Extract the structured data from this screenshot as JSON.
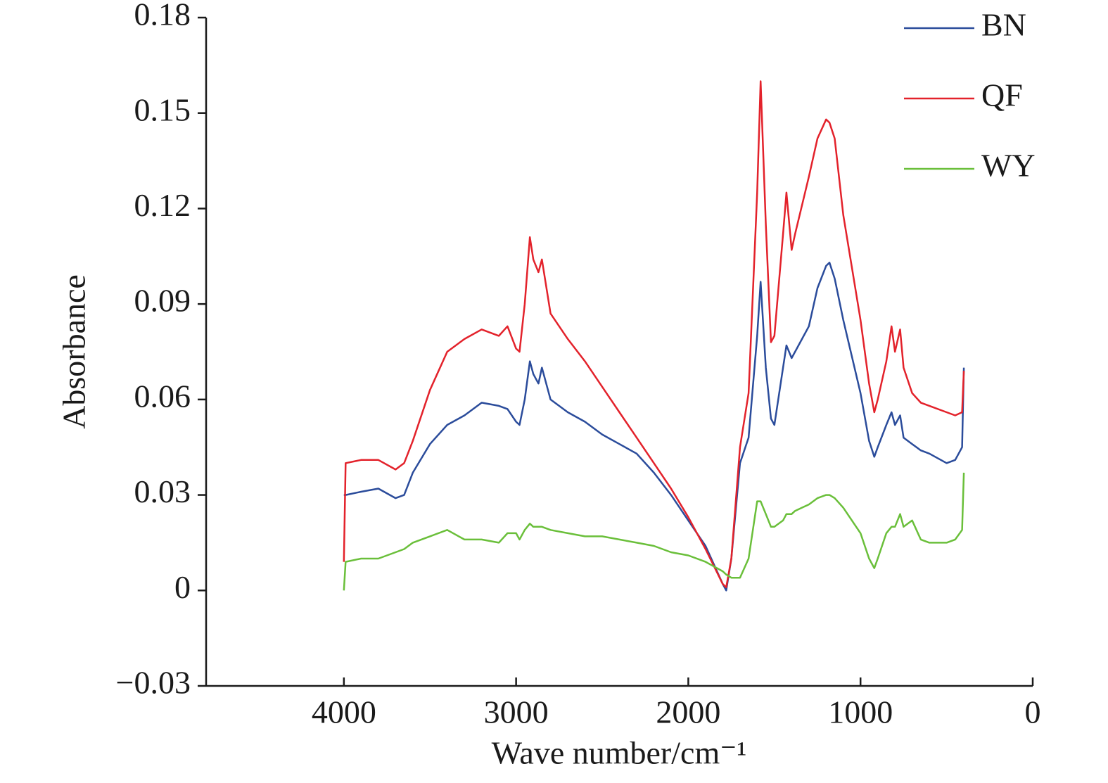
{
  "chart_data": {
    "type": "line",
    "xlabel": "Wave number/cm⁻¹",
    "ylabel": "Absorbance",
    "xlim": [
      4800,
      0
    ],
    "xticks": [
      4000,
      3000,
      2000,
      1000,
      0
    ],
    "ylim": [
      -0.03,
      0.18
    ],
    "yticks": [
      {
        "value": -0.03,
        "label": "−0.03"
      },
      0,
      0.03,
      0.06,
      0.09,
      0.12,
      0.15,
      0.18
    ],
    "legend": "top-right",
    "x": [
      4000,
      3990,
      3900,
      3800,
      3700,
      3650,
      3600,
      3500,
      3400,
      3300,
      3200,
      3100,
      3050,
      3000,
      2980,
      2950,
      2920,
      2900,
      2870,
      2850,
      2800,
      2700,
      2600,
      2500,
      2400,
      2300,
      2200,
      2100,
      2000,
      1900,
      1800,
      1780,
      1750,
      1700,
      1650,
      1600,
      1580,
      1550,
      1520,
      1500,
      1450,
      1430,
      1400,
      1380,
      1300,
      1250,
      1200,
      1180,
      1150,
      1100,
      1000,
      950,
      920,
      900,
      850,
      820,
      800,
      770,
      750,
      700,
      650,
      600,
      500,
      450,
      410,
      400
    ],
    "series": [
      {
        "name": "BN",
        "color": "#2b4c9b",
        "values": [
          0.03,
          0.03,
          0.031,
          0.032,
          0.029,
          0.03,
          0.037,
          0.046,
          0.052,
          0.055,
          0.059,
          0.058,
          0.057,
          0.053,
          0.052,
          0.06,
          0.072,
          0.068,
          0.065,
          0.07,
          0.06,
          0.056,
          0.053,
          0.049,
          0.046,
          0.043,
          0.037,
          0.03,
          0.022,
          0.014,
          0.002,
          0.0,
          0.01,
          0.04,
          0.048,
          0.08,
          0.097,
          0.07,
          0.054,
          0.052,
          0.07,
          0.077,
          0.073,
          0.075,
          0.083,
          0.095,
          0.102,
          0.103,
          0.098,
          0.085,
          0.062,
          0.047,
          0.042,
          0.045,
          0.052,
          0.056,
          0.052,
          0.055,
          0.048,
          0.046,
          0.044,
          0.043,
          0.04,
          0.041,
          0.045,
          0.07
        ]
      },
      {
        "name": "QF",
        "color": "#e3222b",
        "values": [
          0.009,
          0.04,
          0.041,
          0.041,
          0.038,
          0.04,
          0.047,
          0.063,
          0.075,
          0.079,
          0.082,
          0.08,
          0.083,
          0.076,
          0.075,
          0.09,
          0.111,
          0.104,
          0.1,
          0.104,
          0.087,
          0.079,
          0.072,
          0.064,
          0.056,
          0.048,
          0.04,
          0.032,
          0.023,
          0.013,
          0.002,
          0.001,
          0.01,
          0.045,
          0.062,
          0.125,
          0.16,
          0.115,
          0.078,
          0.08,
          0.112,
          0.125,
          0.107,
          0.112,
          0.13,
          0.142,
          0.148,
          0.147,
          0.142,
          0.118,
          0.085,
          0.065,
          0.056,
          0.06,
          0.072,
          0.083,
          0.075,
          0.082,
          0.07,
          0.062,
          0.059,
          0.058,
          0.056,
          0.055,
          0.056,
          0.069
        ]
      },
      {
        "name": "WY",
        "color": "#6abf3a",
        "values": [
          0.0,
          0.009,
          0.01,
          0.01,
          0.012,
          0.013,
          0.015,
          0.017,
          0.019,
          0.016,
          0.016,
          0.015,
          0.018,
          0.018,
          0.016,
          0.019,
          0.021,
          0.02,
          0.02,
          0.02,
          0.019,
          0.018,
          0.017,
          0.017,
          0.016,
          0.015,
          0.014,
          0.012,
          0.011,
          0.009,
          0.006,
          0.005,
          0.004,
          0.004,
          0.01,
          0.028,
          0.028,
          0.024,
          0.02,
          0.02,
          0.022,
          0.024,
          0.024,
          0.025,
          0.027,
          0.029,
          0.03,
          0.03,
          0.029,
          0.026,
          0.018,
          0.01,
          0.007,
          0.01,
          0.018,
          0.02,
          0.02,
          0.024,
          0.02,
          0.022,
          0.016,
          0.015,
          0.015,
          0.016,
          0.019,
          0.037
        ]
      }
    ]
  }
}
